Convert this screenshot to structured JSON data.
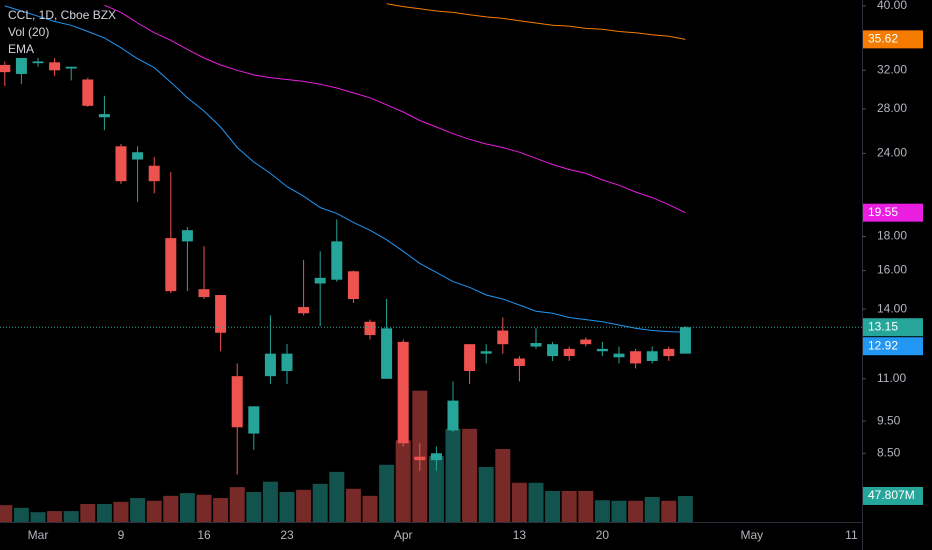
{
  "chart_data": {
    "type": "candlestick",
    "title": "CCL, 1D, Cboe BZX",
    "indicator_labels": [
      "Vol (20)",
      "EMA"
    ],
    "categories": [
      null,
      null,
      "Mar",
      null,
      null,
      null,
      null,
      "9",
      null,
      null,
      null,
      null,
      "16",
      null,
      null,
      null,
      null,
      "23",
      null,
      null,
      null,
      null,
      null,
      null,
      "Apr",
      null,
      null,
      null,
      null,
      null,
      null,
      "13",
      null,
      null,
      null,
      null,
      "20",
      null,
      null,
      null,
      null,
      null,
      null,
      null,
      null,
      "May",
      null,
      null,
      null,
      null,
      null,
      "11"
    ],
    "open": [
      32.6,
      31.6,
      32.8,
      32.9,
      32.2,
      31.0,
      27.2,
      24.6,
      23.5,
      23.0,
      17.9,
      17.7,
      15.0,
      14.7,
      11.1,
      9.1,
      11.1,
      11.3,
      14.1,
      15.3,
      15.5,
      15.96,
      13.4,
      11.0,
      12.5,
      8.4,
      8.3,
      9.2,
      12.4,
      12.0,
      13.0,
      11.8,
      12.3,
      11.9,
      12.2,
      12.6,
      12.1,
      11.85,
      12.1,
      11.7,
      12.2,
      12.0,
      null,
      null,
      null,
      null,
      null,
      null,
      null,
      null,
      null,
      null
    ],
    "high": [
      33.0,
      33.4,
      33.4,
      33.4,
      32.4,
      31.2,
      29.3,
      24.8,
      24.6,
      23.7,
      22.5,
      18.6,
      17.4,
      14.7,
      11.6,
      10.0,
      13.7,
      12.4,
      16.6,
      17.1,
      19.1,
      16.0,
      13.5,
      14.5,
      12.6,
      8.8,
      8.7,
      10.9,
      12.4,
      12.4,
      13.6,
      11.9,
      13.1,
      12.5,
      12.3,
      12.7,
      12.5,
      12.3,
      12.2,
      12.3,
      12.3,
      13.2,
      null,
      null,
      null,
      null,
      null,
      null,
      null,
      null,
      null,
      null
    ],
    "low": [
      30.3,
      30.5,
      32.4,
      31.4,
      30.9,
      28.2,
      26.0,
      21.6,
      20.3,
      20.9,
      14.8,
      14.9,
      14.5,
      12.1,
      7.9,
      8.6,
      10.8,
      10.8,
      13.7,
      13.2,
      15.4,
      14.3,
      12.6,
      11.0,
      8.7,
      8.0,
      8.0,
      9.15,
      10.8,
      11.6,
      12.0,
      10.9,
      12.2,
      11.7,
      11.7,
      12.3,
      11.9,
      11.6,
      11.4,
      11.6,
      11.7,
      12.0,
      null,
      null,
      null,
      null,
      null,
      null,
      null,
      null,
      null,
      null
    ],
    "close": [
      31.8,
      33.4,
      33.0,
      32.0,
      32.4,
      28.3,
      27.5,
      21.8,
      24.1,
      21.8,
      14.9,
      18.4,
      14.6,
      12.9,
      9.3,
      10.0,
      12.0,
      12.0,
      13.8,
      15.6,
      17.7,
      14.5,
      12.8,
      13.1,
      8.8,
      8.3,
      8.5,
      10.2,
      11.3,
      12.1,
      12.4,
      11.5,
      12.45,
      12.4,
      11.9,
      12.4,
      12.2,
      12.0,
      11.6,
      12.1,
      11.9,
      13.15,
      null,
      null,
      null,
      null,
      null,
      null,
      null,
      null,
      null,
      null
    ],
    "volume": [
      31,
      26,
      18,
      20,
      20,
      33,
      33,
      37,
      44,
      39,
      48,
      53,
      50,
      44,
      64,
      55,
      74,
      55,
      59,
      70,
      92,
      61,
      48,
      105,
      150,
      241,
      121,
      171,
      171,
      101,
      134,
      72,
      72,
      57,
      57,
      57,
      40,
      39,
      39,
      46,
      39,
      47.807,
      null,
      null,
      null,
      null,
      null,
      null,
      null,
      null,
      null,
      null
    ],
    "up_color": "#26a69a",
    "down_color": "#ef5350",
    "ema": [
      {
        "color": "#2196f3",
        "values": [
          40.0,
          39.3,
          38.6,
          37.9,
          37.4,
          36.6,
          35.8,
          34.6,
          33.3,
          32.3,
          30.7,
          29.1,
          27.8,
          26.3,
          24.5,
          23.3,
          22.4,
          21.4,
          20.7,
          19.9,
          19.5,
          18.9,
          18.4,
          17.8,
          17.1,
          16.4,
          15.9,
          15.4,
          15.1,
          14.7,
          14.5,
          14.2,
          13.9,
          13.8,
          13.6,
          13.5,
          13.4,
          13.25,
          13.1,
          13.0,
          12.95,
          12.92,
          null,
          null,
          null,
          null,
          null,
          null,
          null,
          null,
          null,
          null
        ],
        "last_label": {
          "value": 12.92,
          "label": "12.92"
        }
      },
      {
        "color": "#e91ee0",
        "values": [
          null,
          null,
          null,
          null,
          null,
          null,
          40.1,
          39.1,
          37.7,
          36.45,
          35.5,
          34.4,
          33.4,
          32.6,
          32.0,
          31.5,
          31.2,
          31.0,
          30.8,
          30.5,
          30.1,
          29.6,
          29.1,
          28.4,
          27.7,
          26.9,
          26.3,
          25.7,
          25.2,
          24.8,
          24.5,
          24.1,
          23.6,
          23.1,
          22.7,
          22.4,
          21.9,
          21.5,
          21.0,
          20.6,
          20.1,
          19.55,
          null,
          null,
          null,
          null,
          null,
          null,
          null,
          null,
          null,
          null
        ],
        "last_label": {
          "value": 19.55,
          "label": "19.55"
        }
      },
      {
        "color": "#f57c00",
        "values": [
          null,
          null,
          null,
          null,
          null,
          null,
          null,
          null,
          null,
          null,
          null,
          null,
          null,
          null,
          null,
          null,
          null,
          null,
          null,
          null,
          null,
          null,
          null,
          40.3,
          39.9,
          39.6,
          39.3,
          39.1,
          38.8,
          38.5,
          38.3,
          38.0,
          37.7,
          37.4,
          37.3,
          37.0,
          36.9,
          36.6,
          36.45,
          36.2,
          36.0,
          35.62,
          null,
          null,
          null,
          null,
          null,
          null,
          null,
          null,
          null,
          null
        ],
        "last_label": {
          "value": 35.62,
          "label": "35.62"
        }
      }
    ],
    "close_label": {
      "value": 13.15,
      "label": "13.15"
    },
    "volume_label": {
      "value": 47.807,
      "label": "47.807M"
    },
    "log_scale": true,
    "ylim": [
      6.7,
      40.4
    ],
    "yticks": [
      {
        "value": 8.5,
        "label": "8.50"
      },
      {
        "value": 9.5,
        "label": "9.50"
      },
      {
        "value": 11,
        "label": "11.00"
      },
      {
        "value": 14,
        "label": "14.00"
      },
      {
        "value": 16,
        "label": "16.00"
      },
      {
        "value": 18,
        "label": "18.00"
      },
      {
        "value": 24,
        "label": "24.00"
      },
      {
        "value": 28,
        "label": "28.00"
      },
      {
        "value": 32,
        "label": "32.00"
      },
      {
        "value": 40,
        "label": "40.00"
      }
    ],
    "volume_ylim": [
      0,
      958
    ]
  }
}
